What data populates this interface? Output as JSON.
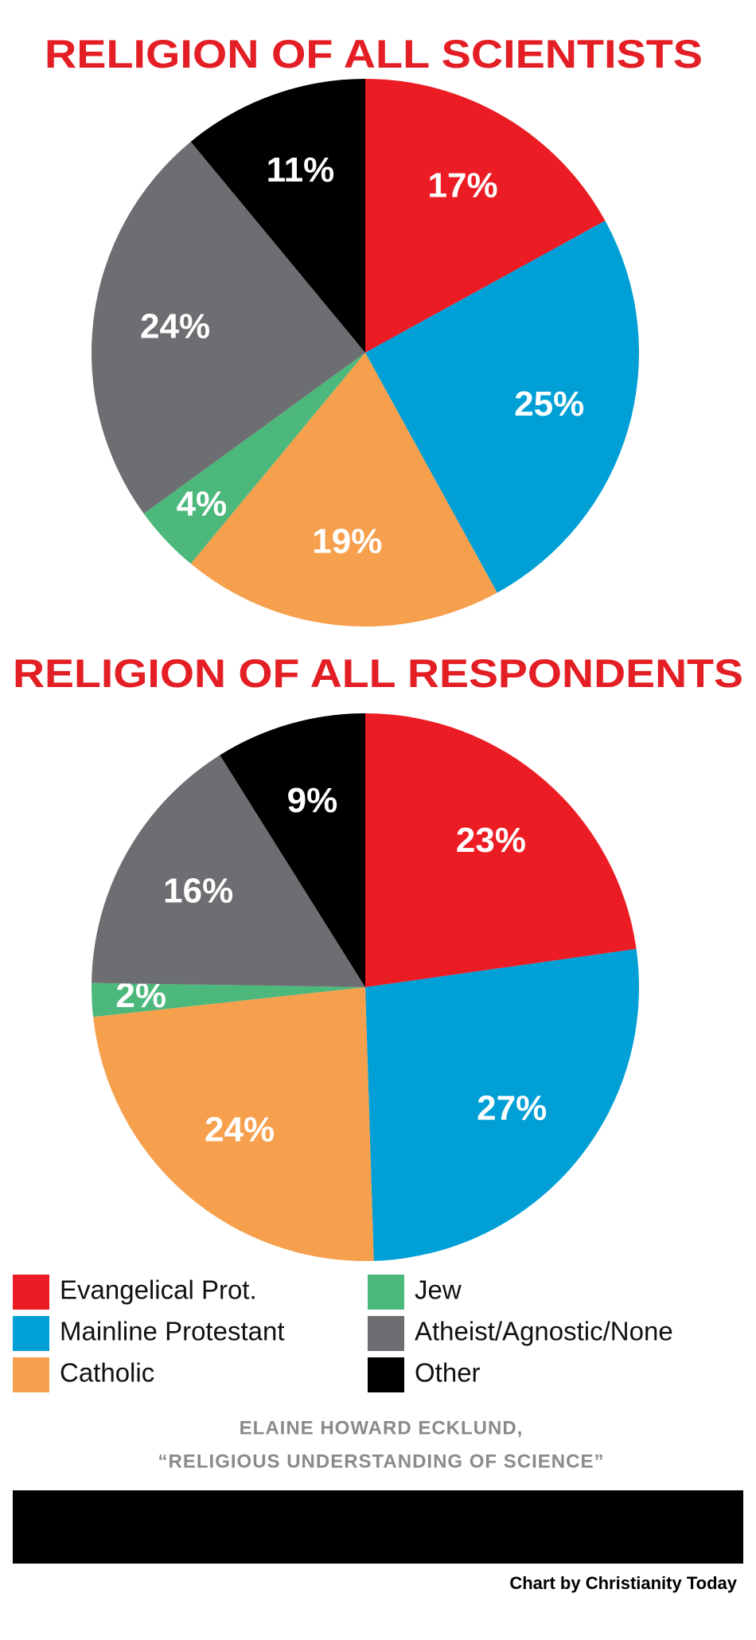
{
  "chart_data": [
    {
      "type": "pie",
      "title": "RELIGION OF ALL SCIENTISTS",
      "values": [
        17,
        25,
        19,
        4,
        24,
        11
      ],
      "value_labels": [
        "17%",
        "25%",
        "19%",
        "4%",
        "24%",
        "11%"
      ]
    },
    {
      "type": "pie",
      "title": "RELIGION OF ALL RESPONDENTS",
      "values": [
        23,
        27,
        24,
        2,
        16,
        9
      ],
      "value_labels": [
        "23%",
        "27%",
        "24%",
        "2%",
        "16%",
        "9%"
      ]
    }
  ],
  "legend": {
    "categories": [
      "Evangelical Prot.",
      "Mainline Protestant",
      "Catholic",
      "Jew",
      "Atheist/Agnostic/None",
      "Other"
    ],
    "colors": [
      "#ec1c24",
      "#009fd6",
      "#f6a04d",
      "#4cb87c",
      "#6d6e71",
      "#000000"
    ]
  },
  "source": [
    "ELAINE HOWARD ECKLUND,",
    "“RELIGIOUS UNDERSTANDING OF SCIENCE”"
  ],
  "credit": "Chart by Christianity Today"
}
